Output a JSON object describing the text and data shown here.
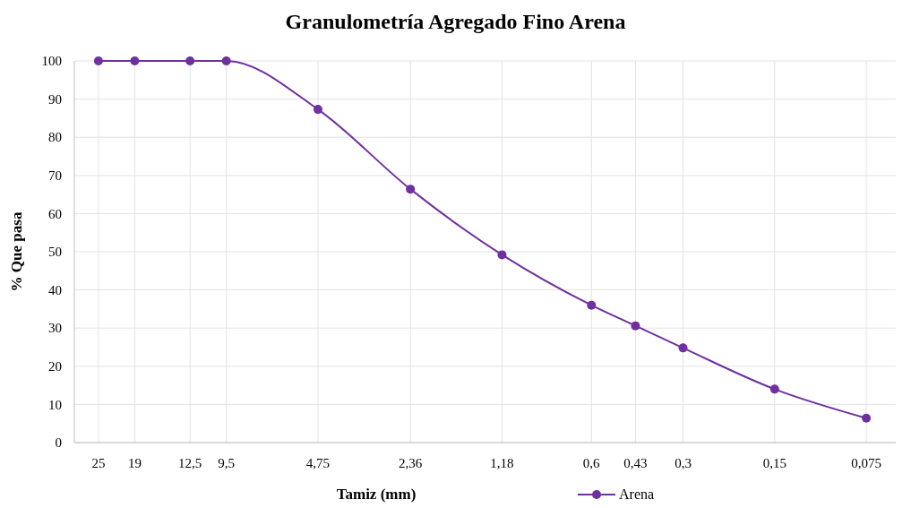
{
  "chart_data": {
    "type": "line",
    "title": "Granulometría Agregado Fino Arena",
    "xlabel": "Tamiz (mm)",
    "ylabel": "% Que pasa",
    "x": [
      25,
      19,
      12.5,
      9.5,
      4.75,
      2.36,
      1.18,
      0.6,
      0.43,
      0.3,
      0.15,
      0.075
    ],
    "series": [
      {
        "name": "Arena",
        "color": "#7030a0",
        "values": [
          100,
          100,
          100,
          100,
          87.3,
          66.4,
          49.2,
          36,
          30.6,
          24.8,
          14,
          6.4
        ]
      }
    ],
    "log": "x",
    "xlim": [
      30,
      0.06
    ],
    "xticks": [
      {
        "value": 25,
        "label": "25"
      },
      {
        "value": 19,
        "label": "19"
      },
      {
        "value": 12.5,
        "label": "12,5"
      },
      {
        "value": 9.5,
        "label": "9,5"
      },
      {
        "value": 4.75,
        "label": "4,75"
      },
      {
        "value": 2.36,
        "label": "2,36"
      },
      {
        "value": 1.18,
        "label": "1,18"
      },
      {
        "value": 0.6,
        "label": "0,6"
      },
      {
        "value": 0.43,
        "label": "0,43"
      },
      {
        "value": 0.3,
        "label": "0,3"
      },
      {
        "value": 0.15,
        "label": "0,15"
      },
      {
        "value": 0.075,
        "label": "0,075"
      }
    ],
    "ylim": [
      0,
      100
    ],
    "yticks": [
      0,
      10,
      20,
      30,
      40,
      50,
      60,
      70,
      80,
      90,
      100
    ],
    "grid": true,
    "legend": "bottom",
    "marker": "circle",
    "line_style": "solid"
  }
}
